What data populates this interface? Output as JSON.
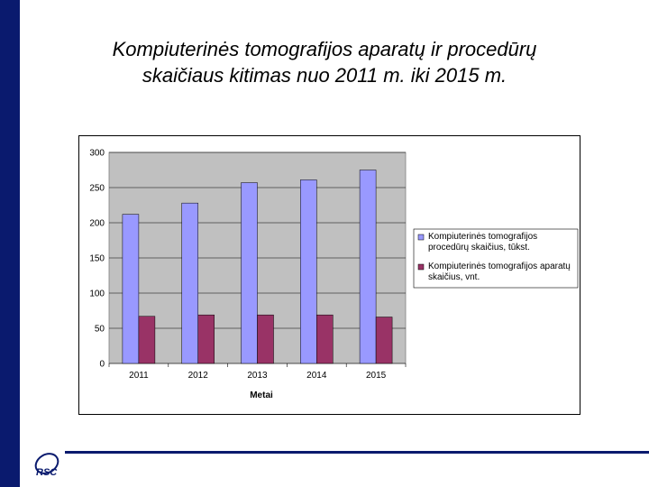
{
  "title": {
    "line1": "Kompiuterinės tomografijos aparatų ir procedūrų",
    "line2": "skaičiaus kitimas nuo 2011 m. iki 2015 m."
  },
  "logo": {
    "text": "RSC"
  },
  "colors": {
    "series1": "#9999ff",
    "series2": "#993366",
    "plot_bg": "#c0c0c0",
    "accent": "#0a1a6e"
  },
  "chart_data": {
    "type": "bar",
    "categories": [
      "2011",
      "2012",
      "2013",
      "2014",
      "2015"
    ],
    "series": [
      {
        "name": "Kompiuterinės tomografijos procedūrų skaičius, tūkst.",
        "values": [
          212,
          228,
          257,
          261,
          275
        ]
      },
      {
        "name": "Kompiuterinės tomografijos aparatų skaičius, vnt.",
        "values": [
          67,
          69,
          69,
          69,
          66
        ]
      }
    ],
    "xlabel": "Metai",
    "ylabel": "",
    "ylim": [
      0,
      300
    ],
    "yticks": [
      "0",
      "50",
      "100",
      "150",
      "200",
      "250",
      "300"
    ],
    "grid": true,
    "legend": "right"
  }
}
